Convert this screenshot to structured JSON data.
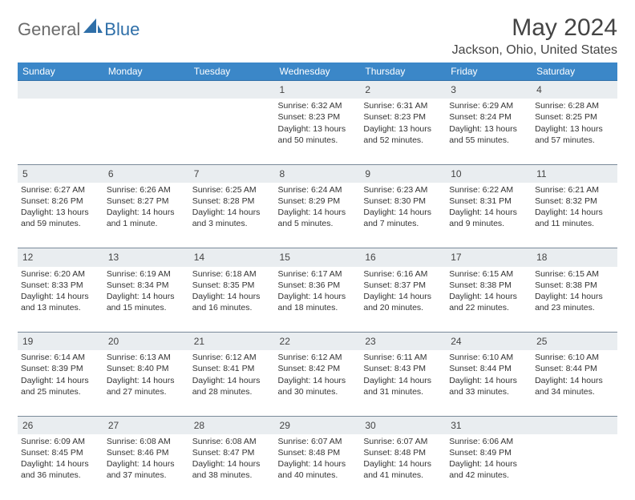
{
  "brand": {
    "text1": "General",
    "text2": "Blue"
  },
  "title": "May 2024",
  "location": "Jackson, Ohio, United States",
  "weekdays": [
    "Sunday",
    "Monday",
    "Tuesday",
    "Wednesday",
    "Thursday",
    "Friday",
    "Saturday"
  ],
  "colors": {
    "header_bg": "#3b87c8",
    "daynum_bg": "#e9edf0",
    "text": "#333333",
    "brand_gray": "#6b6b6b",
    "brand_blue": "#2f6fa8"
  },
  "weeks": [
    [
      null,
      null,
      null,
      {
        "n": "1",
        "sr": "6:32 AM",
        "ss": "8:23 PM",
        "dl": "13 hours and 50 minutes."
      },
      {
        "n": "2",
        "sr": "6:31 AM",
        "ss": "8:23 PM",
        "dl": "13 hours and 52 minutes."
      },
      {
        "n": "3",
        "sr": "6:29 AM",
        "ss": "8:24 PM",
        "dl": "13 hours and 55 minutes."
      },
      {
        "n": "4",
        "sr": "6:28 AM",
        "ss": "8:25 PM",
        "dl": "13 hours and 57 minutes."
      }
    ],
    [
      {
        "n": "5",
        "sr": "6:27 AM",
        "ss": "8:26 PM",
        "dl": "13 hours and 59 minutes."
      },
      {
        "n": "6",
        "sr": "6:26 AM",
        "ss": "8:27 PM",
        "dl": "14 hours and 1 minute."
      },
      {
        "n": "7",
        "sr": "6:25 AM",
        "ss": "8:28 PM",
        "dl": "14 hours and 3 minutes."
      },
      {
        "n": "8",
        "sr": "6:24 AM",
        "ss": "8:29 PM",
        "dl": "14 hours and 5 minutes."
      },
      {
        "n": "9",
        "sr": "6:23 AM",
        "ss": "8:30 PM",
        "dl": "14 hours and 7 minutes."
      },
      {
        "n": "10",
        "sr": "6:22 AM",
        "ss": "8:31 PM",
        "dl": "14 hours and 9 minutes."
      },
      {
        "n": "11",
        "sr": "6:21 AM",
        "ss": "8:32 PM",
        "dl": "14 hours and 11 minutes."
      }
    ],
    [
      {
        "n": "12",
        "sr": "6:20 AM",
        "ss": "8:33 PM",
        "dl": "14 hours and 13 minutes."
      },
      {
        "n": "13",
        "sr": "6:19 AM",
        "ss": "8:34 PM",
        "dl": "14 hours and 15 minutes."
      },
      {
        "n": "14",
        "sr": "6:18 AM",
        "ss": "8:35 PM",
        "dl": "14 hours and 16 minutes."
      },
      {
        "n": "15",
        "sr": "6:17 AM",
        "ss": "8:36 PM",
        "dl": "14 hours and 18 minutes."
      },
      {
        "n": "16",
        "sr": "6:16 AM",
        "ss": "8:37 PM",
        "dl": "14 hours and 20 minutes."
      },
      {
        "n": "17",
        "sr": "6:15 AM",
        "ss": "8:38 PM",
        "dl": "14 hours and 22 minutes."
      },
      {
        "n": "18",
        "sr": "6:15 AM",
        "ss": "8:38 PM",
        "dl": "14 hours and 23 minutes."
      }
    ],
    [
      {
        "n": "19",
        "sr": "6:14 AM",
        "ss": "8:39 PM",
        "dl": "14 hours and 25 minutes."
      },
      {
        "n": "20",
        "sr": "6:13 AM",
        "ss": "8:40 PM",
        "dl": "14 hours and 27 minutes."
      },
      {
        "n": "21",
        "sr": "6:12 AM",
        "ss": "8:41 PM",
        "dl": "14 hours and 28 minutes."
      },
      {
        "n": "22",
        "sr": "6:12 AM",
        "ss": "8:42 PM",
        "dl": "14 hours and 30 minutes."
      },
      {
        "n": "23",
        "sr": "6:11 AM",
        "ss": "8:43 PM",
        "dl": "14 hours and 31 minutes."
      },
      {
        "n": "24",
        "sr": "6:10 AM",
        "ss": "8:44 PM",
        "dl": "14 hours and 33 minutes."
      },
      {
        "n": "25",
        "sr": "6:10 AM",
        "ss": "8:44 PM",
        "dl": "14 hours and 34 minutes."
      }
    ],
    [
      {
        "n": "26",
        "sr": "6:09 AM",
        "ss": "8:45 PM",
        "dl": "14 hours and 36 minutes."
      },
      {
        "n": "27",
        "sr": "6:08 AM",
        "ss": "8:46 PM",
        "dl": "14 hours and 37 minutes."
      },
      {
        "n": "28",
        "sr": "6:08 AM",
        "ss": "8:47 PM",
        "dl": "14 hours and 38 minutes."
      },
      {
        "n": "29",
        "sr": "6:07 AM",
        "ss": "8:48 PM",
        "dl": "14 hours and 40 minutes."
      },
      {
        "n": "30",
        "sr": "6:07 AM",
        "ss": "8:48 PM",
        "dl": "14 hours and 41 minutes."
      },
      {
        "n": "31",
        "sr": "6:06 AM",
        "ss": "8:49 PM",
        "dl": "14 hours and 42 minutes."
      },
      null
    ]
  ],
  "labels": {
    "sunrise": "Sunrise:",
    "sunset": "Sunset:",
    "daylight": "Daylight:"
  }
}
